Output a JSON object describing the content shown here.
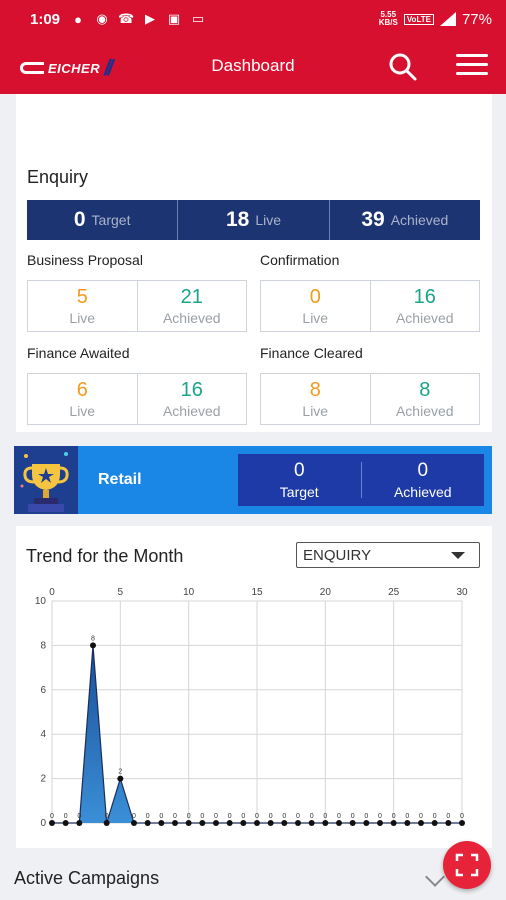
{
  "status_bar": {
    "time": "1:09",
    "net_speed_value": "5.55",
    "net_speed_unit": "KB/S",
    "volte": "VoLTE",
    "battery": "77%"
  },
  "app_bar": {
    "logo_text": "EICHER",
    "title": "Dashboard"
  },
  "enquiry": {
    "title": "Enquiry",
    "target": {
      "value": "0",
      "label": "Target"
    },
    "live": {
      "value": "18",
      "label": "Live"
    },
    "achieved": {
      "value": "39",
      "label": "Achieved"
    }
  },
  "stages": [
    {
      "title": "Business Proposal",
      "live": "5",
      "achieved": "21",
      "live_label": "Live",
      "achieved_label": "Achieved"
    },
    {
      "title": "Confirmation",
      "live": "0",
      "achieved": "16",
      "live_label": "Live",
      "achieved_label": "Achieved"
    },
    {
      "title": "Finance Awaited",
      "live": "6",
      "achieved": "16",
      "live_label": "Live",
      "achieved_label": "Achieved"
    },
    {
      "title": "Finance Cleared",
      "live": "8",
      "achieved": "8",
      "live_label": "Live",
      "achieved_label": "Achieved"
    }
  ],
  "retail": {
    "label": "Retail",
    "target": {
      "value": "0",
      "label": "Target"
    },
    "achieved": {
      "value": "0",
      "label": "Achieved"
    }
  },
  "trend": {
    "title": "Trend for the Month",
    "dropdown_value": "ENQUIRY"
  },
  "chart_data": {
    "type": "area",
    "title": "",
    "xlabel": "",
    "ylabel": "",
    "xlim": [
      0,
      30
    ],
    "ylim": [
      0,
      10
    ],
    "x_ticks": [
      0,
      5,
      10,
      15,
      20,
      25,
      30
    ],
    "y_ticks": [
      0,
      2,
      4,
      6,
      8,
      10
    ],
    "x_axis_position": "top",
    "grid": true,
    "x": [
      0,
      1,
      2,
      3,
      4,
      5,
      6,
      7,
      8,
      9,
      10,
      11,
      12,
      13,
      14,
      15,
      16,
      17,
      18,
      19,
      20,
      21,
      22,
      23,
      24,
      25,
      26,
      27,
      28,
      29,
      30
    ],
    "values": [
      0,
      0,
      0,
      8,
      0,
      2,
      0,
      0,
      0,
      0,
      0,
      0,
      0,
      0,
      0,
      0,
      0,
      0,
      0,
      0,
      0,
      0,
      0,
      0,
      0,
      0,
      0,
      0,
      0,
      0,
      0
    ],
    "colors": {
      "fill": "#3a8fd6",
      "line": "#1b2e5a"
    }
  },
  "active_campaigns": {
    "title": "Active Campaigns"
  }
}
